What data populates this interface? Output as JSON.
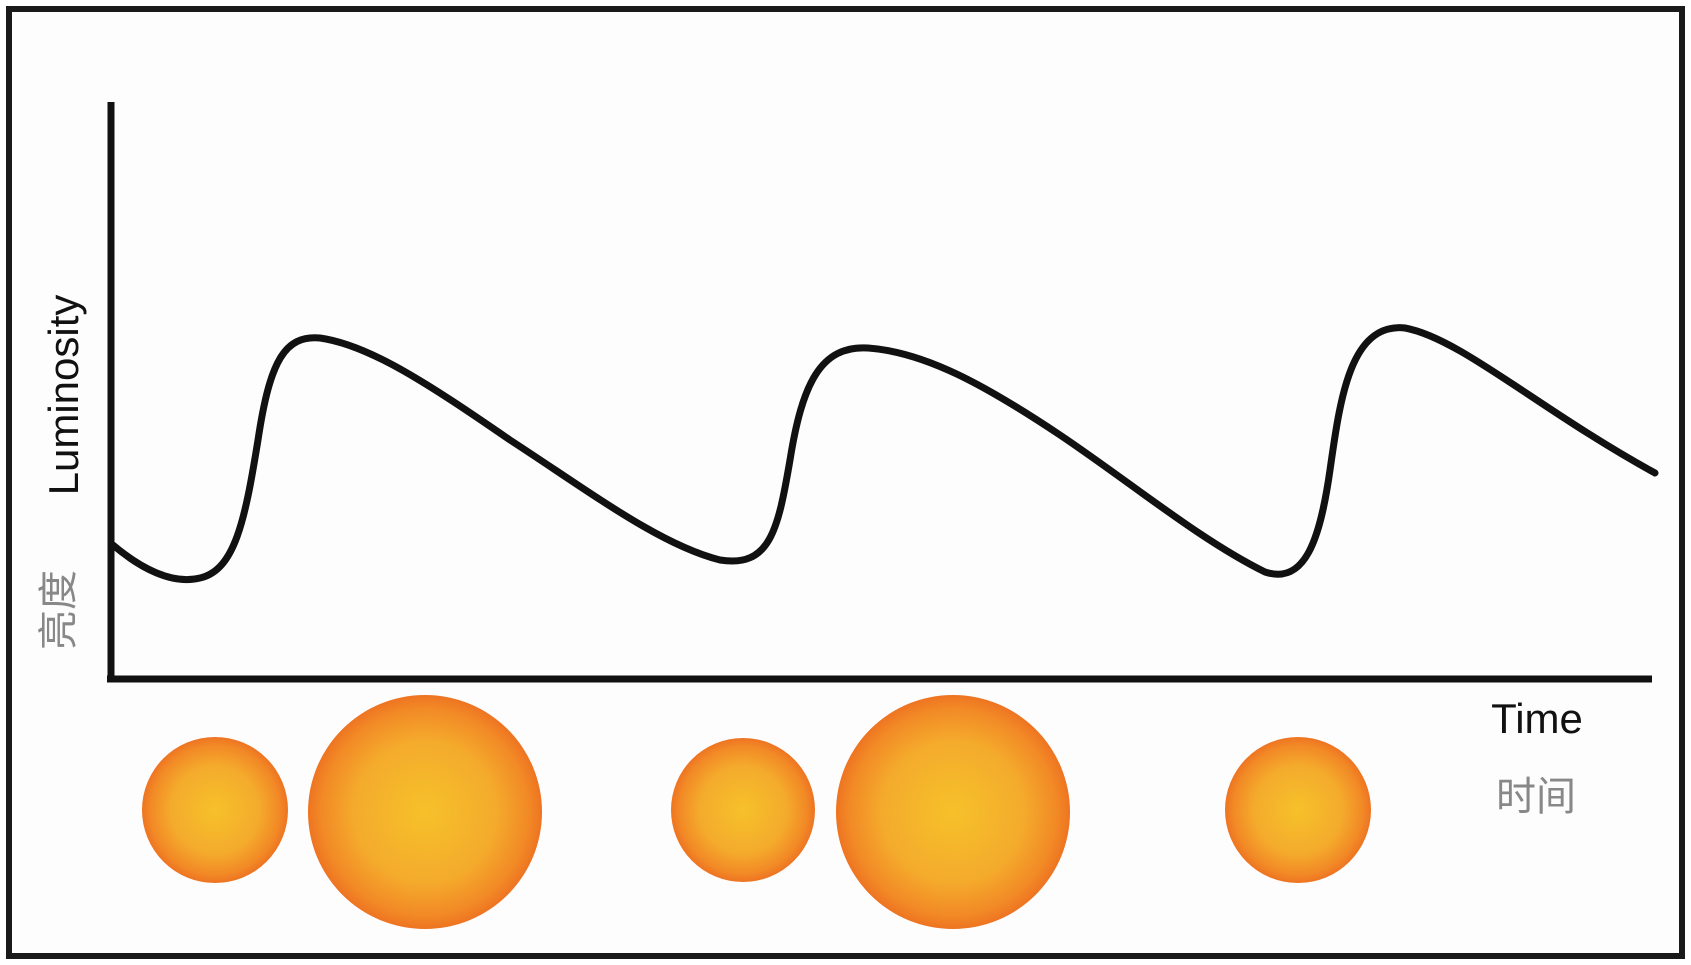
{
  "axes": {
    "y_label": "Luminosity",
    "y_label_zh": "亮度",
    "x_label": "Time",
    "x_label_zh": "时间"
  },
  "colors": {
    "axis": "#111111",
    "curve": "#111111",
    "star_center": "#f6c12a",
    "star_mid": "#f4a52c",
    "star_edge": "#f07a24",
    "label_zh": "#888888"
  },
  "stars": [
    {
      "size": "small"
    },
    {
      "size": "large"
    },
    {
      "size": "small"
    },
    {
      "size": "large"
    },
    {
      "size": "small"
    }
  ]
}
